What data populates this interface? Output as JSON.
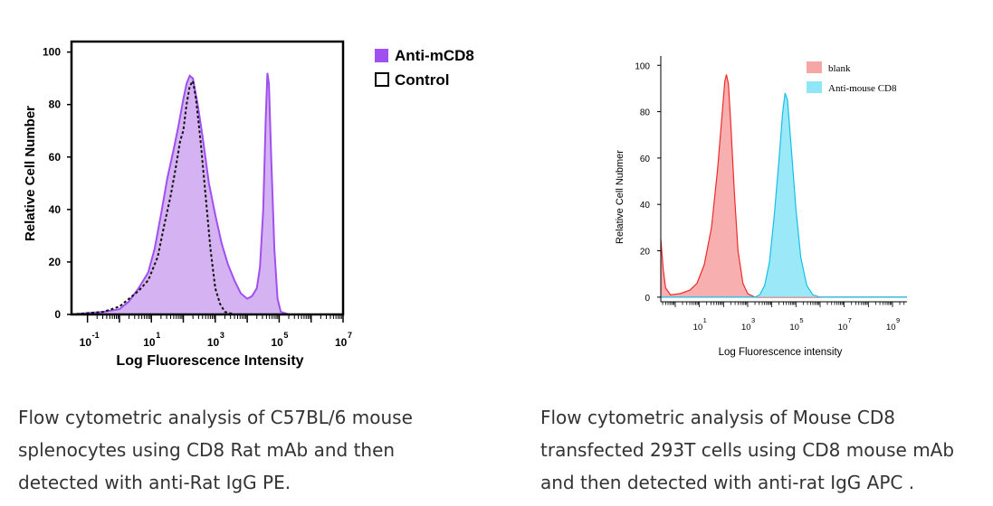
{
  "colors": {
    "left_fill": "#d5b3f2",
    "left_line": "#a050ee",
    "control_line": "#111111",
    "right_red_fill": "#f7a6a6",
    "right_red_line": "#ee2b2b",
    "right_cyan_fill": "#8fe6f7",
    "right_cyan_line": "#16bfe8"
  },
  "chart_data": [
    {
      "type": "area",
      "title": "",
      "xlabel": "Log Fluorescence Intensity",
      "ylabel": "Relative Cell Number",
      "x_scale": "log",
      "xlim_log10": [
        -1.5,
        7
      ],
      "ylim": [
        0,
        104
      ],
      "y_ticks": [
        "0",
        "20",
        "40",
        "60",
        "80",
        "100"
      ],
      "x_ticks": [
        {
          "base": "10",
          "exp": "-1",
          "log10": -1
        },
        {
          "base": "10",
          "exp": "1",
          "log10": 1
        },
        {
          "base": "10",
          "exp": "3",
          "log10": 3
        },
        {
          "base": "10",
          "exp": "5",
          "log10": 5
        },
        {
          "base": "10",
          "exp": "7",
          "log10": 7
        }
      ],
      "legend_position": "outside-right-top",
      "series": [
        {
          "name": "Anti-mCD8",
          "style": "filled",
          "points": [
            [
              -1.5,
              0
            ],
            [
              -1.0,
              0.5
            ],
            [
              -0.5,
              1
            ],
            [
              0.0,
              2
            ],
            [
              0.3,
              5
            ],
            [
              0.6,
              10
            ],
            [
              0.9,
              16
            ],
            [
              1.1,
              25
            ],
            [
              1.3,
              38
            ],
            [
              1.5,
              52
            ],
            [
              1.7,
              63
            ],
            [
              1.85,
              72
            ],
            [
              2.0,
              82
            ],
            [
              2.1,
              88
            ],
            [
              2.2,
              91
            ],
            [
              2.3,
              90
            ],
            [
              2.45,
              80
            ],
            [
              2.6,
              68
            ],
            [
              2.8,
              50
            ],
            [
              3.0,
              38
            ],
            [
              3.2,
              27
            ],
            [
              3.4,
              19
            ],
            [
              3.6,
              13
            ],
            [
              3.8,
              8
            ],
            [
              4.0,
              6
            ],
            [
              4.15,
              7
            ],
            [
              4.3,
              10
            ],
            [
              4.4,
              18
            ],
            [
              4.5,
              40
            ],
            [
              4.58,
              75
            ],
            [
              4.63,
              92
            ],
            [
              4.68,
              88
            ],
            [
              4.75,
              60
            ],
            [
              4.85,
              25
            ],
            [
              4.95,
              6
            ],
            [
              5.05,
              1
            ],
            [
              5.3,
              0
            ],
            [
              7.0,
              0
            ]
          ]
        },
        {
          "name": "Control",
          "style": "dotted",
          "points": [
            [
              -1.5,
              0
            ],
            [
              -1.0,
              0.5
            ],
            [
              -0.5,
              1
            ],
            [
              0.0,
              3
            ],
            [
              0.3,
              6
            ],
            [
              0.6,
              9
            ],
            [
              0.9,
              13
            ],
            [
              1.2,
              22
            ],
            [
              1.4,
              34
            ],
            [
              1.6,
              45
            ],
            [
              1.75,
              55
            ],
            [
              1.9,
              66
            ],
            [
              2.0,
              70
            ],
            [
              2.1,
              80
            ],
            [
              2.2,
              87
            ],
            [
              2.3,
              89
            ],
            [
              2.4,
              82
            ],
            [
              2.55,
              65
            ],
            [
              2.7,
              45
            ],
            [
              2.85,
              25
            ],
            [
              3.0,
              10
            ],
            [
              3.15,
              4
            ],
            [
              3.3,
              1
            ],
            [
              3.6,
              0
            ],
            [
              7.0,
              0
            ]
          ]
        }
      ]
    },
    {
      "type": "area",
      "title": "",
      "xlabel": "Log Fluorescence intensity",
      "ylabel": "Relative Cell Nubmer",
      "x_scale": "log",
      "xlim_log10": [
        -0.6,
        9.6
      ],
      "ylim": [
        -2,
        104
      ],
      "y_ticks": [
        "0",
        "20",
        "40",
        "60",
        "80",
        "100"
      ],
      "x_ticks": [
        {
          "base": "10",
          "exp": "1",
          "log10": 1
        },
        {
          "base": "10",
          "exp": "3",
          "log10": 3
        },
        {
          "base": "10",
          "exp": "5",
          "log10": 5
        },
        {
          "base": "10",
          "exp": "7",
          "log10": 7
        },
        {
          "base": "10",
          "exp": "9",
          "log10": 9
        }
      ],
      "legend_position": "top-right-inside",
      "series": [
        {
          "name": "blank",
          "style": "filled",
          "points": [
            [
              -0.6,
              25
            ],
            [
              -0.5,
              12
            ],
            [
              -0.4,
              4
            ],
            [
              -0.2,
              1
            ],
            [
              0.2,
              1.5
            ],
            [
              0.6,
              3
            ],
            [
              0.9,
              6
            ],
            [
              1.2,
              14
            ],
            [
              1.5,
              30
            ],
            [
              1.75,
              55
            ],
            [
              1.95,
              80
            ],
            [
              2.05,
              93
            ],
            [
              2.12,
              96
            ],
            [
              2.2,
              92
            ],
            [
              2.3,
              75
            ],
            [
              2.45,
              45
            ],
            [
              2.6,
              20
            ],
            [
              2.8,
              6
            ],
            [
              3.0,
              1.5
            ],
            [
              3.3,
              0
            ],
            [
              9.6,
              0
            ]
          ]
        },
        {
          "name": "Anti-mouse CD8",
          "style": "filled",
          "points": [
            [
              -0.6,
              0
            ],
            [
              3.3,
              0
            ],
            [
              3.5,
              1
            ],
            [
              3.7,
              5
            ],
            [
              3.9,
              15
            ],
            [
              4.1,
              35
            ],
            [
              4.3,
              60
            ],
            [
              4.45,
              80
            ],
            [
              4.55,
              88
            ],
            [
              4.65,
              85
            ],
            [
              4.8,
              65
            ],
            [
              5.0,
              38
            ],
            [
              5.2,
              17
            ],
            [
              5.45,
              5
            ],
            [
              5.7,
              1
            ],
            [
              6.0,
              0
            ],
            [
              9.6,
              0
            ]
          ]
        }
      ]
    }
  ],
  "captions": {
    "left": [
      "Flow cytometric analysis of C57BL/6 mouse",
      "splenocytes using CD8 Rat mAb and then",
      "detected with anti-Rat IgG PE."
    ],
    "right": [
      "Flow cytometric analysis of Mouse CD8",
      "transfected 293T cells using CD8 mouse mAb",
      "and then detected with anti-rat IgG APC ."
    ]
  }
}
